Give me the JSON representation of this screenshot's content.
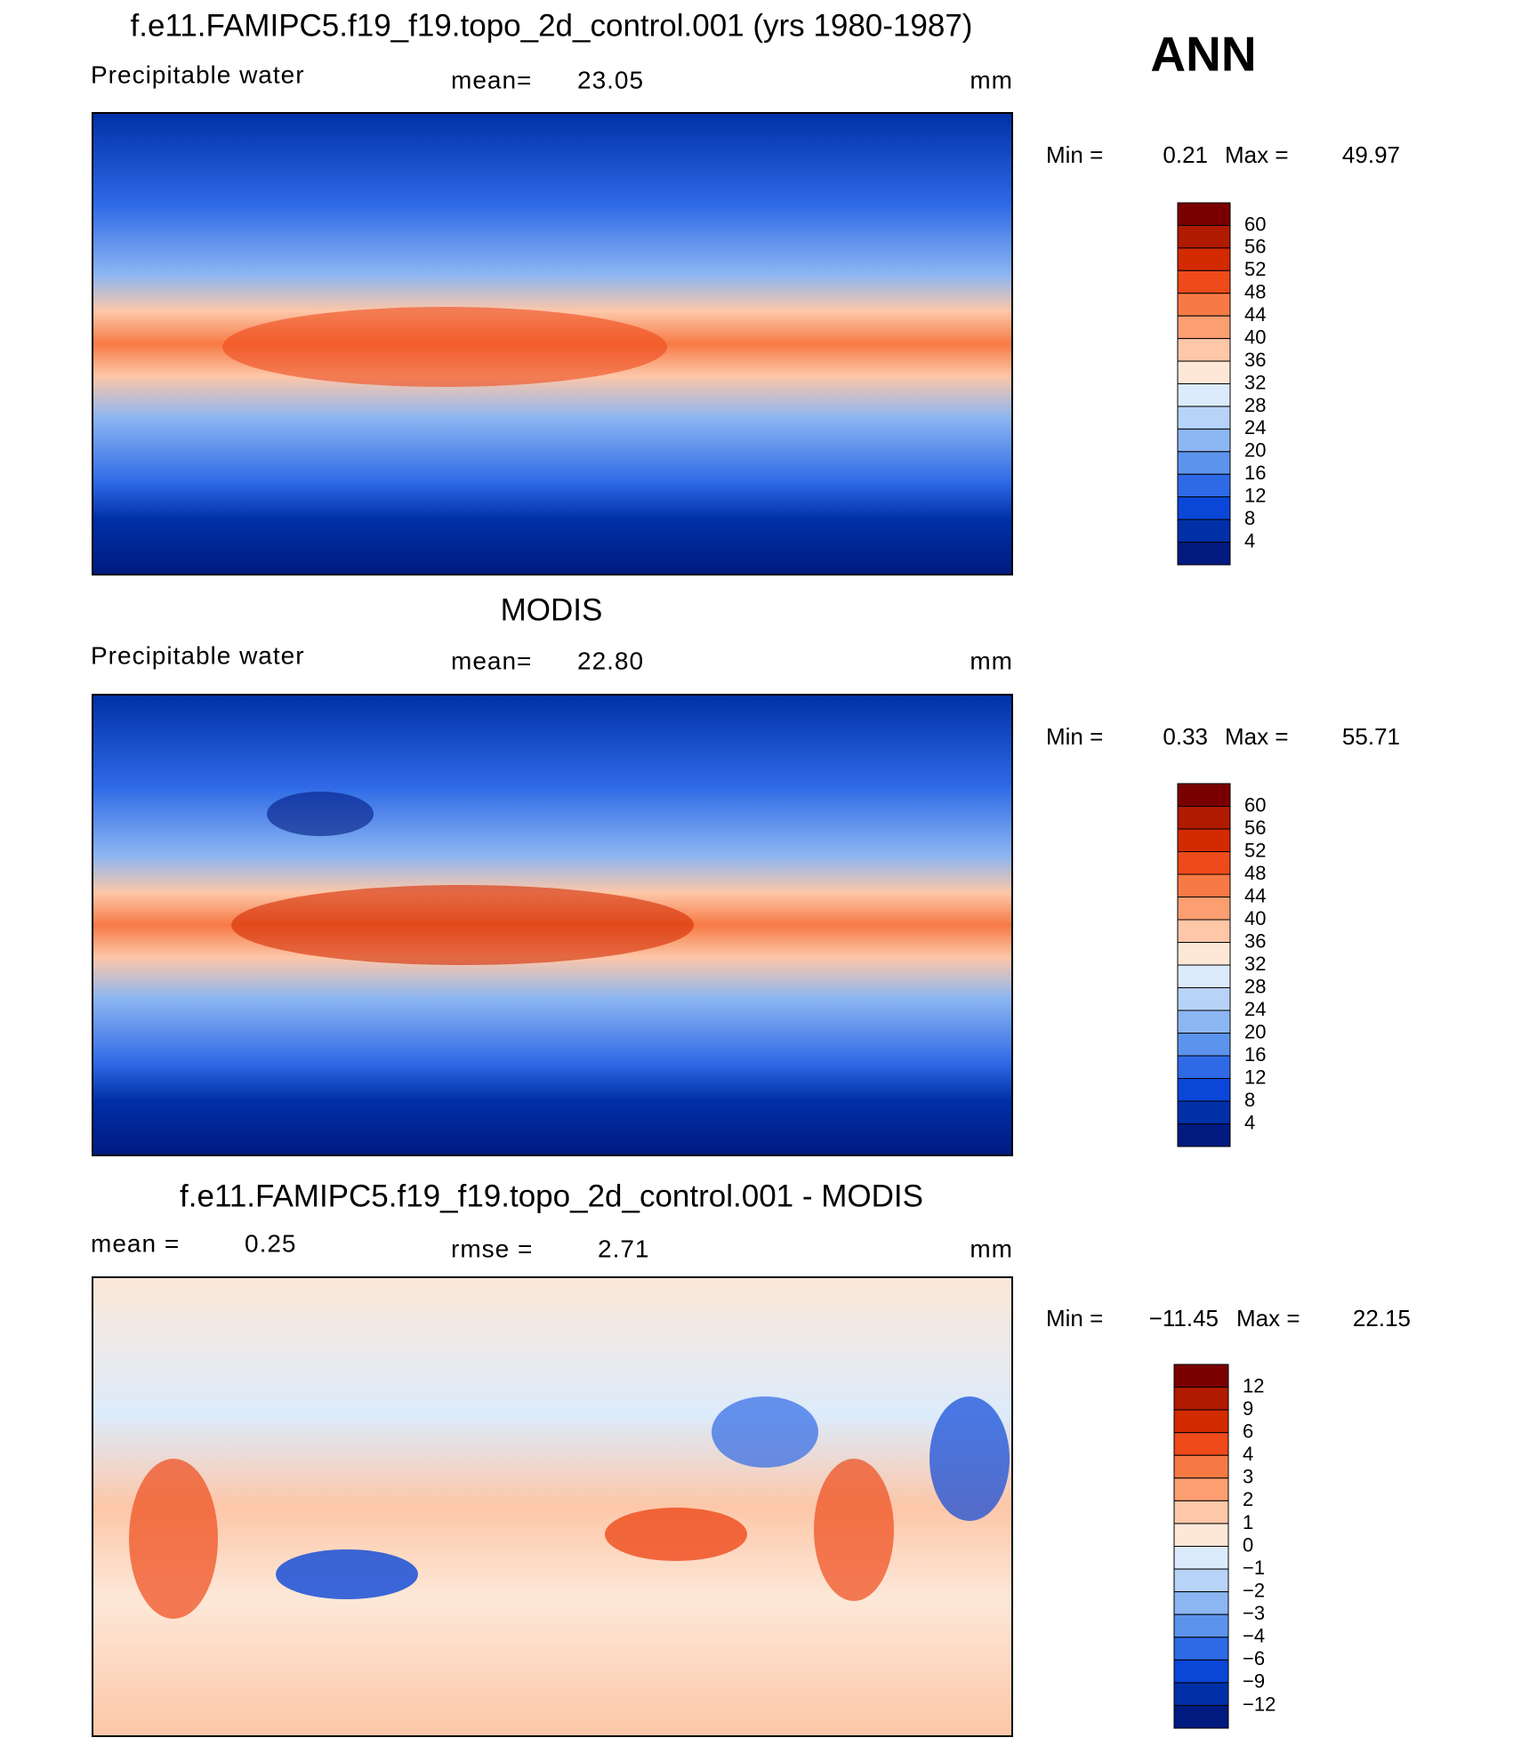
{
  "label": "ANN",
  "panels": [
    {
      "title": "f.e11.FAMIPC5.f19_f19.topo_2d_control.001 (yrs 1980-1987)",
      "left": "Precipitable water",
      "center_label": "mean=",
      "center_value": "23.05",
      "units": "mm",
      "min_label": "Min =",
      "min": "0.21",
      "max_label": "Max =",
      "max": "49.97",
      "colorbar": {
        "levels": [
          "60",
          "56",
          "52",
          "48",
          "44",
          "40",
          "36",
          "32",
          "28",
          "24",
          "20",
          "16",
          "12",
          "8",
          "4"
        ],
        "colors": [
          "#7a0000",
          "#b01a00",
          "#d42a00",
          "#ee4a1a",
          "#f77a45",
          "#fb9e70",
          "#fdc7a8",
          "#fde8d8",
          "#dcebfb",
          "#b7d3f7",
          "#8cb6f2",
          "#5c93ec",
          "#2f6ae6",
          "#0a46d8",
          "#0030a8",
          "#001a80"
        ]
      }
    },
    {
      "title": "MODIS",
      "left": "Precipitable water",
      "center_label": "mean=",
      "center_value": "22.80",
      "units": "mm",
      "min_label": "Min =",
      "min": "0.33",
      "max_label": "Max =",
      "max": "55.71",
      "colorbar": {
        "levels": [
          "60",
          "56",
          "52",
          "48",
          "44",
          "40",
          "36",
          "32",
          "28",
          "24",
          "20",
          "16",
          "12",
          "8",
          "4"
        ],
        "colors": [
          "#7a0000",
          "#b01a00",
          "#d42a00",
          "#ee4a1a",
          "#f77a45",
          "#fb9e70",
          "#fdc7a8",
          "#fde8d8",
          "#dcebfb",
          "#b7d3f7",
          "#8cb6f2",
          "#5c93ec",
          "#2f6ae6",
          "#0a46d8",
          "#0030a8",
          "#001a80"
        ]
      }
    },
    {
      "title": "f.e11.FAMIPC5.f19_f19.topo_2d_control.001 - MODIS",
      "left": "mean =",
      "left_value": "0.25",
      "center_label": "rmse =",
      "center_value": "2.71",
      "units": "mm",
      "min_label": "Min =",
      "min": "−11.45",
      "max_label": "Max =",
      "max": "22.15",
      "colorbar": {
        "levels": [
          "12",
          "9",
          "6",
          "4",
          "3",
          "2",
          "1",
          "0",
          "−1",
          "−2",
          "−3",
          "−4",
          "−6",
          "−9",
          "−12"
        ],
        "colors": [
          "#7a0000",
          "#b01a00",
          "#d42a00",
          "#ee4a1a",
          "#f77a45",
          "#fb9e70",
          "#fdc7a8",
          "#fde8d8",
          "#dcebfb",
          "#b7d3f7",
          "#8cb6f2",
          "#5c93ec",
          "#2f6ae6",
          "#0a46d8",
          "#0030a8",
          "#001a80"
        ]
      }
    }
  ]
}
